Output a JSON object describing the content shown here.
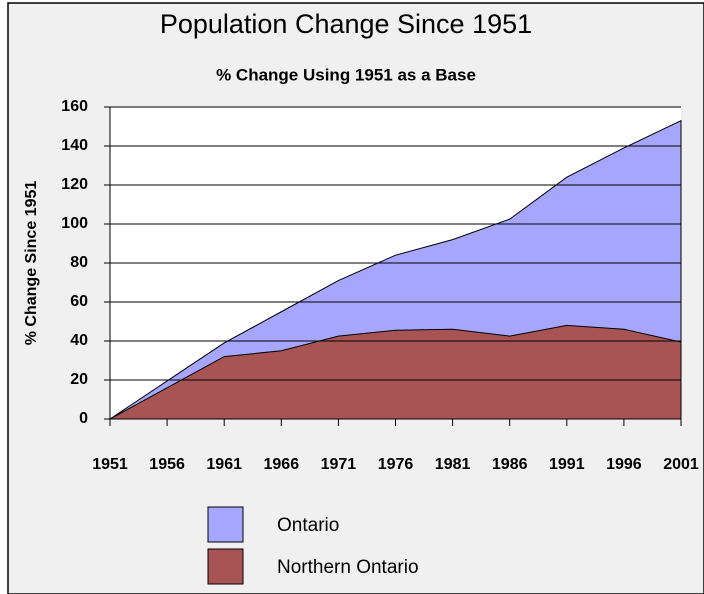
{
  "chart_data": {
    "type": "area",
    "title": "Population Change Since 1951",
    "subtitle": "% Change Using 1951 as a Base",
    "y_label": "% Change Since 1951",
    "x": [
      1951,
      1956,
      1961,
      1966,
      1971,
      1976,
      1981,
      1986,
      1991,
      1996,
      2001
    ],
    "xlim": [
      1951,
      2001
    ],
    "xticks": [
      1951,
      1956,
      1961,
      1966,
      1971,
      1976,
      1981,
      1986,
      1991,
      1996,
      2001
    ],
    "ylim": [
      0,
      160
    ],
    "yticks": [
      0,
      20,
      40,
      60,
      80,
      100,
      120,
      140,
      160
    ],
    "grid": true,
    "series": [
      {
        "name": "Ontario",
        "color": "#a6a6ff",
        "values": [
          0,
          19.5,
          39,
          55,
          71,
          84,
          92,
          102.5,
          124,
          139,
          153
        ]
      },
      {
        "name": "Northern Ontario",
        "color": "#a85454",
        "values": [
          0,
          16,
          32,
          35,
          42.5,
          45.5,
          46,
          42.5,
          48,
          46,
          39.5
        ]
      }
    ]
  }
}
